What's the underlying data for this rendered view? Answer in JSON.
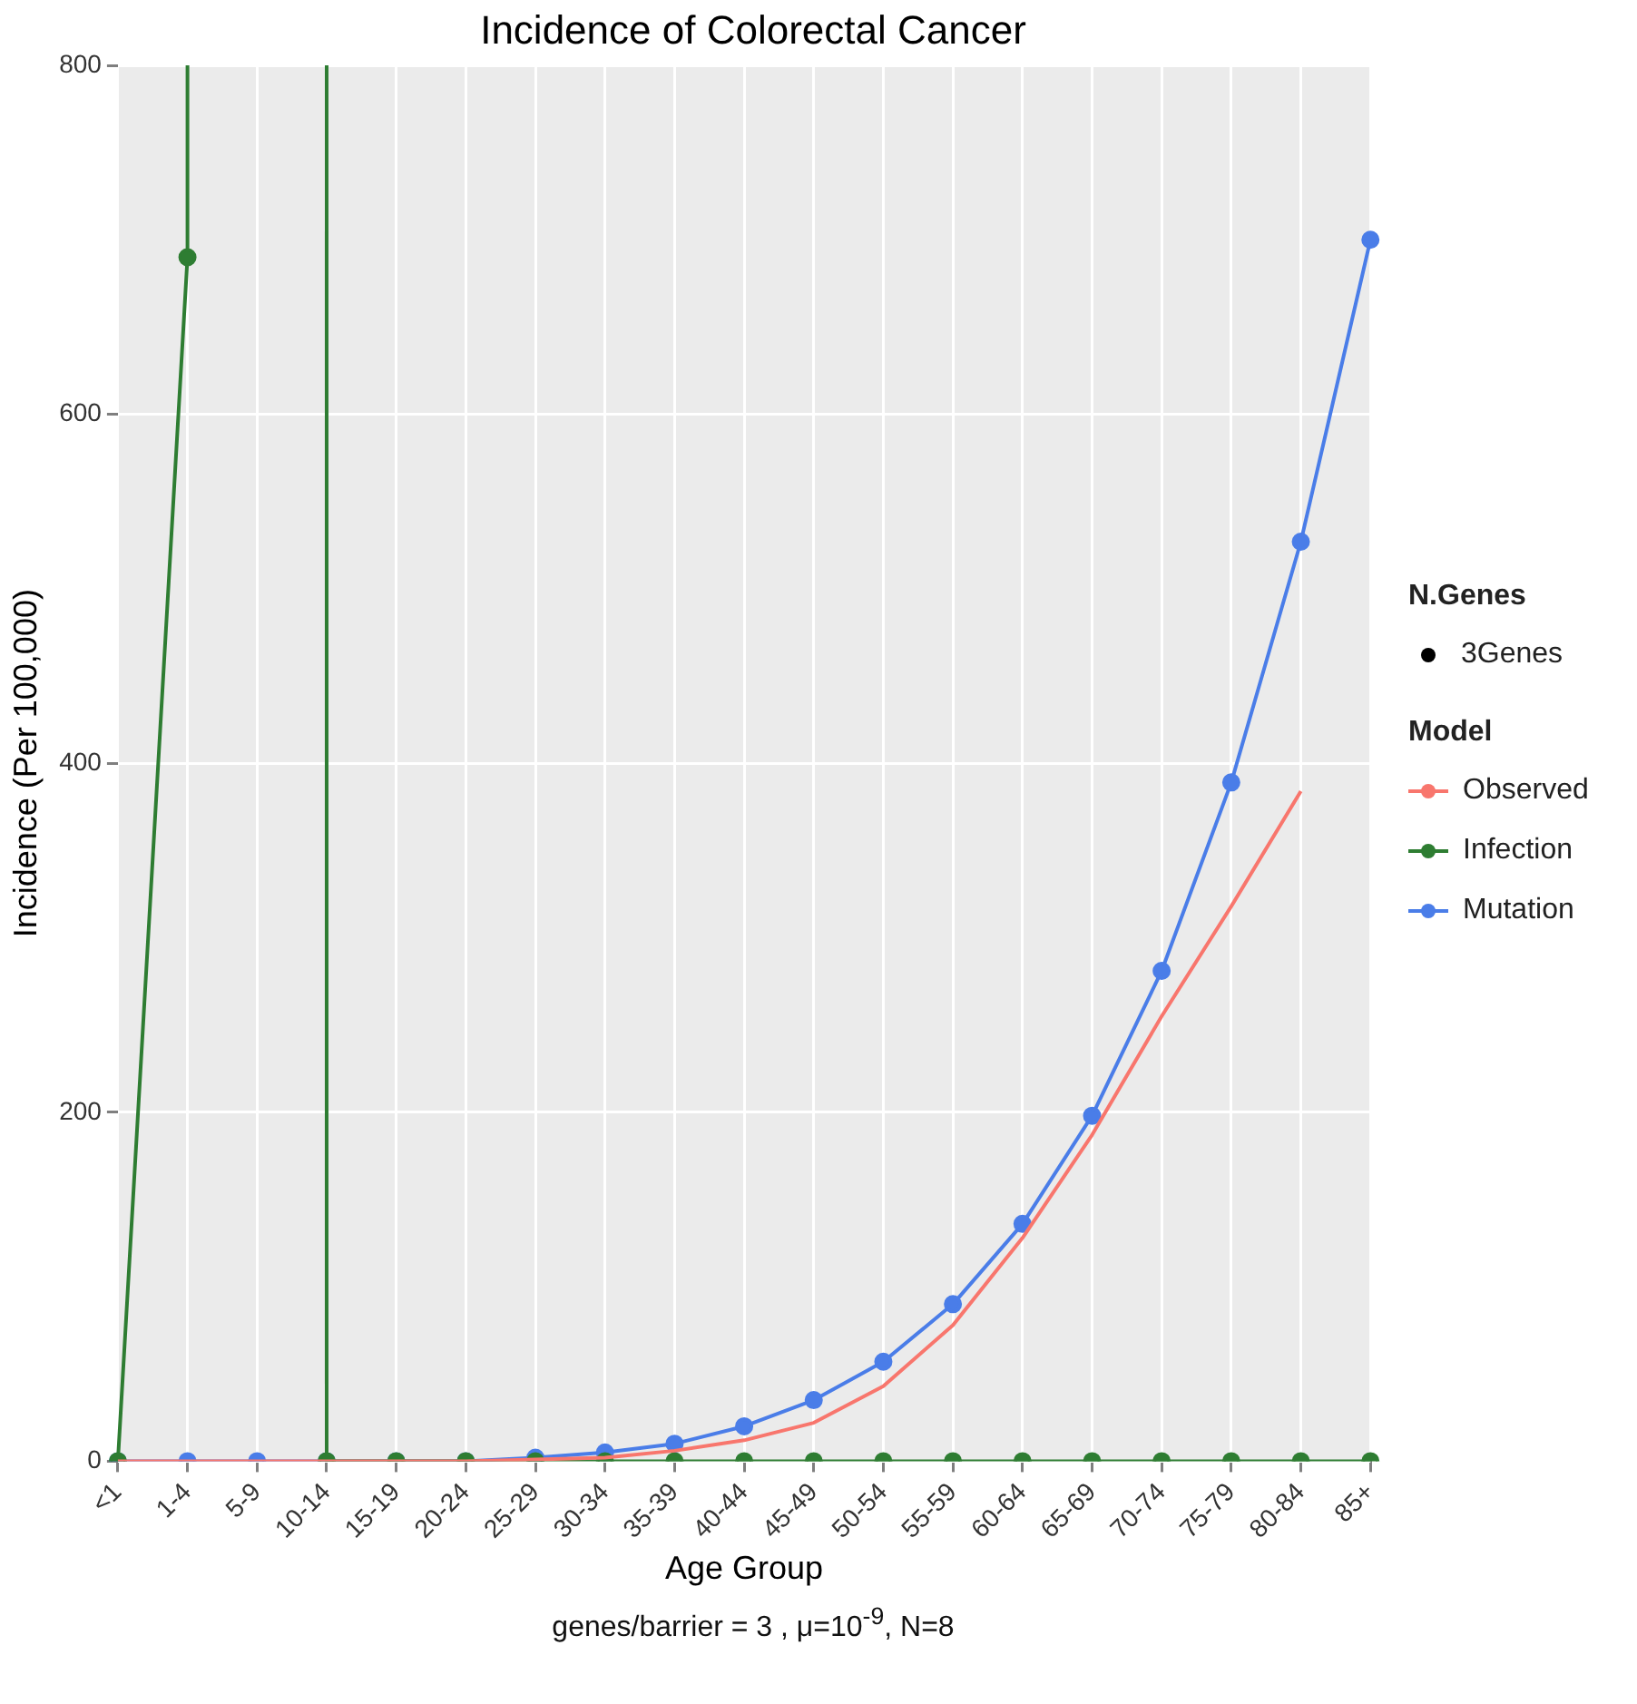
{
  "chart_data": {
    "type": "line",
    "title": "Incidence of Colorectal Cancer",
    "xlabel": "Age Group",
    "ylabel": "Incidence (Per 100,000)",
    "legend_title": "Model",
    "categories": [
      "<1",
      "1-4",
      "5-9",
      "10-14",
      "15-19",
      "20-24",
      "25-29",
      "30-34",
      "35-39",
      "40-44",
      "45-49",
      "50-54",
      "55-59",
      "60-64",
      "65-69",
      "70-74",
      "75-79",
      "80-84",
      "85+"
    ],
    "ylim": [
      0,
      800
    ],
    "yticks": [
      0,
      200,
      400,
      600,
      800
    ],
    "grid": true,
    "legend": "right",
    "series": [
      {
        "name": "Observed",
        "color": "#f8766d",
        "marker": "none",
        "values": [
          0,
          0,
          0,
          0,
          0,
          0,
          1,
          2,
          6,
          12,
          22,
          43,
          78,
          128,
          187,
          255,
          318,
          384,
          null
        ]
      },
      {
        "name": "Infection",
        "color": "#2e7d32",
        "marker": "circle",
        "x": [
          "<1",
          "1-4",
          "1-4",
          "5-9",
          "10-14",
          "10-14",
          "15-19",
          "20-24",
          "25-29",
          "30-34",
          "35-39",
          "40-44",
          "45-49",
          "50-54",
          "55-59",
          "60-64",
          "65-69",
          "70-74",
          "75-79",
          "80-84",
          "85+"
        ],
        "values": [
          0,
          690,
          800,
          null,
          800,
          0,
          0,
          0,
          0,
          0,
          0,
          0,
          0,
          0,
          0,
          0,
          0,
          0,
          0,
          0,
          0
        ]
      },
      {
        "name": "Mutation",
        "color": "#4a7de8",
        "marker": "circle",
        "values": [
          0,
          0,
          0,
          0,
          0,
          0,
          2,
          5,
          10,
          20,
          35,
          57,
          90,
          136,
          198,
          281,
          389,
          527,
          700
        ]
      }
    ],
    "annotations": [
      "N.Genes",
      "3Genes",
      "genes/barrier = 3 , μ=10$^{-9}$, N=8"
    ]
  }
}
